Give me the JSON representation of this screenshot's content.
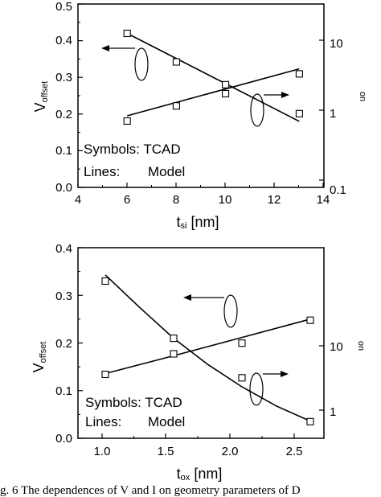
{
  "chart_data": [
    {
      "type": "scatter",
      "xlabel": "t",
      "xlabel_sub": "si",
      "xlabel_unit": "[nm]",
      "ylabel_left": "V",
      "ylabel_left_sub": "offset",
      "ylabel_right_sub": "on",
      "xlim": [
        4,
        14
      ],
      "ylim_left": [
        0.0,
        0.5
      ],
      "ylim_right": [
        0.1,
        10
      ],
      "yscale_right": "log",
      "xticks": [
        "4",
        "6",
        "8",
        "10",
        "12",
        "14"
      ],
      "yticks_left": [
        "0.0",
        "0.1",
        "0.2",
        "0.3",
        "0.4",
        "0.5"
      ],
      "yticks_right": [
        "0.1",
        "1",
        "10"
      ],
      "legend_notes": {
        "symbols": "Symbols: TCAD",
        "lines": "Lines:",
        "lines_value": "Model"
      },
      "series": [
        {
          "axis": "left",
          "points": [
            [
              6,
              0.42
            ],
            [
              8,
              0.342
            ],
            [
              10,
              0.28
            ],
            [
              13,
              0.201
            ]
          ],
          "line": [
            [
              6,
              0.42
            ],
            [
              13,
              0.18
            ]
          ]
        },
        {
          "axis": "right",
          "points": [
            [
              6,
              0.7
            ],
            [
              8,
              1.15
            ],
            [
              10,
              1.72
            ],
            [
              13,
              3.3
            ]
          ],
          "line": [
            [
              6,
              0.83
            ],
            [
              13,
              3.9
            ]
          ]
        }
      ]
    },
    {
      "type": "scatter",
      "xlabel": "t",
      "xlabel_sub": "ox",
      "xlabel_unit": "[nm]",
      "ylabel_left": "V",
      "ylabel_left_sub": "offset",
      "ylabel_right_sub": "on",
      "xlim": [
        0.8,
        2.6
      ],
      "ylim_left": [
        0.0,
        0.4
      ],
      "yscale_right": "log",
      "xticks": [
        "1.0",
        "1.5",
        "2.0",
        "2.5"
      ],
      "yticks_left": [
        "0.0",
        "0.1",
        "0.2",
        "0.3",
        "0.4"
      ],
      "yticks_right": [
        "1",
        "10"
      ],
      "legend_notes": {
        "symbols": "Symbols: TCAD",
        "lines": "Lines:",
        "lines_value": "Model"
      },
      "series": [
        {
          "axis": "left",
          "points": [
            [
              1.0,
              0.33
            ],
            [
              1.5,
              0.21
            ],
            [
              2.0,
              0.127
            ],
            [
              2.5,
              0.035
            ]
          ],
          "line": [
            [
              1.0,
              0.343
            ],
            [
              1.25,
              0.275
            ],
            [
              1.5,
              0.21
            ],
            [
              1.75,
              0.155
            ],
            [
              2.0,
              0.108
            ],
            [
              2.25,
              0.068
            ],
            [
              2.5,
              0.036
            ]
          ]
        },
        {
          "axis": "right",
          "points": [
            [
              1.0,
              3.6
            ],
            [
              1.5,
              7.5
            ],
            [
              2.0,
              11
            ],
            [
              2.5,
              25
            ]
          ],
          "line": [
            [
              1.0,
              3.7
            ],
            [
              1.5,
              7.0
            ],
            [
              2.0,
              13.5
            ],
            [
              2.5,
              26
            ]
          ]
        }
      ]
    }
  ],
  "caption": "g. 6 The dependences of V      and I   on geometry parameters of D"
}
